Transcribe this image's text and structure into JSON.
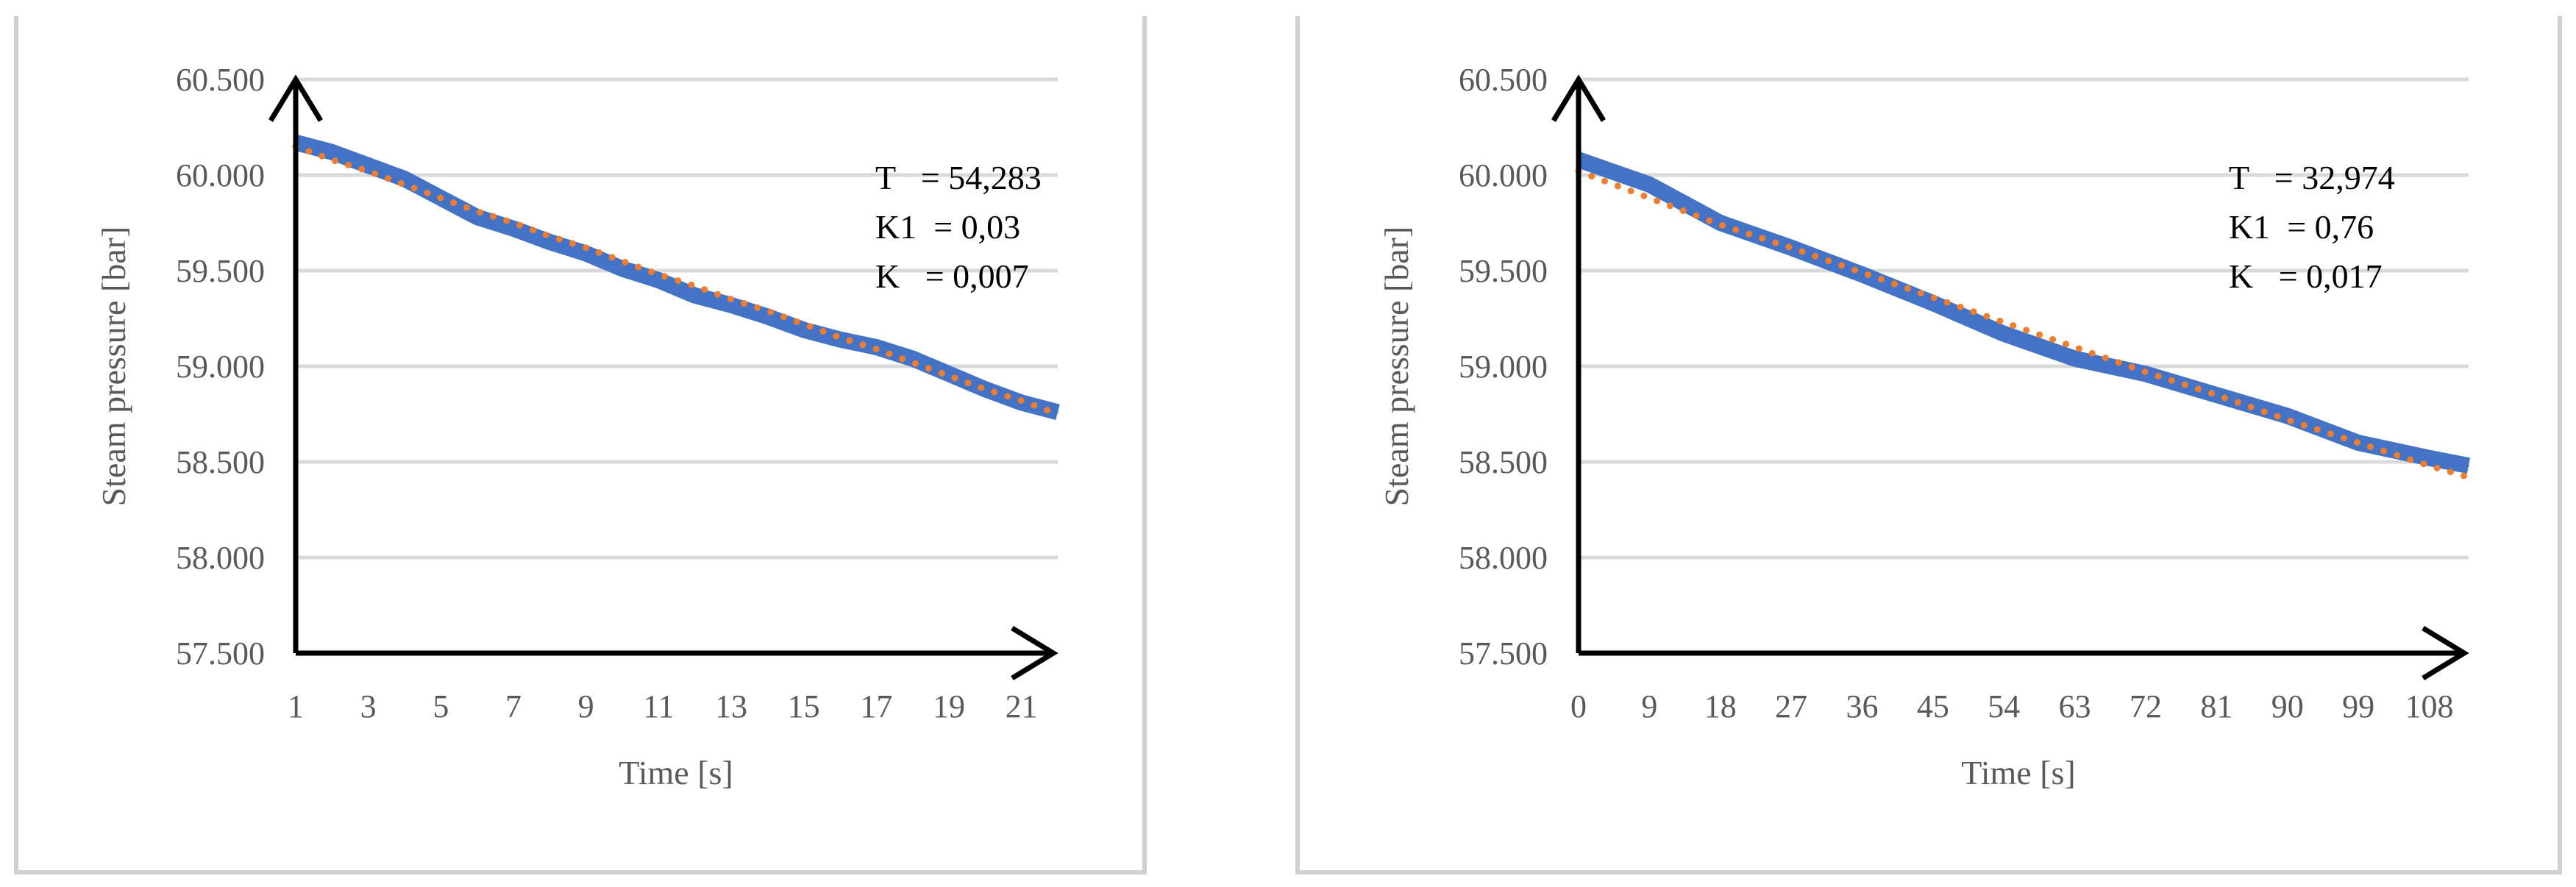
{
  "colors": {
    "measured": "#4472C4",
    "model": "#ED7D31",
    "grid": "#D9D9D9",
    "axis": "#000000",
    "frame": "#D0D0D0"
  },
  "chart_data": [
    {
      "type": "line",
      "title": "",
      "xlabel": "Time [s]",
      "ylabel": "Steam pressure [bar]",
      "ylim": [
        57.5,
        60.5
      ],
      "y_ticks": [
        "60.500",
        "60.000",
        "59.500",
        "59.000",
        "58.500",
        "58.000",
        "57.500"
      ],
      "x_ticks": [
        "1",
        "3",
        "5",
        "7",
        "9",
        "11",
        "13",
        "15",
        "17",
        "19",
        "21"
      ],
      "grid": "horizontal",
      "legend": "none",
      "annotations": [
        "T   = 54,283",
        "K1  = 0,03",
        "K   = 0,007"
      ],
      "series": [
        {
          "style": "solid",
          "x": [
            1,
            2,
            3,
            4,
            5,
            6,
            7,
            8,
            9,
            10,
            11,
            12,
            13,
            14,
            15,
            16,
            17,
            18,
            19,
            20,
            21,
            22
          ],
          "y": [
            60.17,
            60.12,
            60.05,
            59.98,
            59.88,
            59.78,
            59.72,
            59.65,
            59.59,
            59.51,
            59.45,
            59.37,
            59.32,
            59.26,
            59.19,
            59.14,
            59.1,
            59.04,
            58.96,
            58.88,
            58.81,
            58.76
          ]
        },
        {
          "style": "dotted",
          "x": [
            1,
            2,
            3,
            4,
            5,
            6,
            7,
            8,
            9,
            10,
            11,
            12,
            13,
            14,
            15,
            16,
            17,
            18,
            19,
            20,
            21,
            22
          ],
          "y": [
            60.15,
            60.08,
            60.02,
            59.95,
            59.88,
            59.81,
            59.75,
            59.68,
            59.62,
            59.55,
            59.48,
            59.42,
            59.35,
            59.29,
            59.22,
            59.15,
            59.09,
            59.02,
            58.95,
            58.88,
            58.82,
            58.75
          ]
        }
      ]
    },
    {
      "type": "line",
      "title": "",
      "xlabel": "Time [s]",
      "ylabel": "Steam pressure [bar]",
      "ylim": [
        57.5,
        60.5
      ],
      "y_ticks": [
        "60.500",
        "60.000",
        "59.500",
        "59.000",
        "58.500",
        "58.000",
        "57.500"
      ],
      "x_ticks": [
        "0",
        "9",
        "18",
        "27",
        "36",
        "45",
        "54",
        "63",
        "72",
        "81",
        "90",
        "99",
        "108"
      ],
      "grid": "horizontal",
      "legend": "none",
      "annotations": [
        "T   = 32,974",
        "K1  = 0,76",
        "K   = 0,017"
      ],
      "series": [
        {
          "style": "solid",
          "x": [
            0,
            9,
            18,
            27,
            36,
            45,
            54,
            63,
            72,
            81,
            90,
            99,
            108,
            113
          ],
          "y": [
            60.08,
            59.95,
            59.75,
            59.62,
            59.48,
            59.33,
            59.17,
            59.04,
            58.96,
            58.85,
            58.74,
            58.6,
            58.52,
            58.48
          ]
        },
        {
          "style": "dotted",
          "x": [
            0,
            9,
            18,
            27,
            36,
            45,
            54,
            63,
            72,
            81,
            90,
            99,
            108,
            113
          ],
          "y": [
            60.02,
            59.88,
            59.74,
            59.62,
            59.49,
            59.36,
            59.23,
            59.1,
            58.97,
            58.85,
            58.72,
            58.6,
            58.48,
            58.42
          ]
        }
      ]
    }
  ]
}
